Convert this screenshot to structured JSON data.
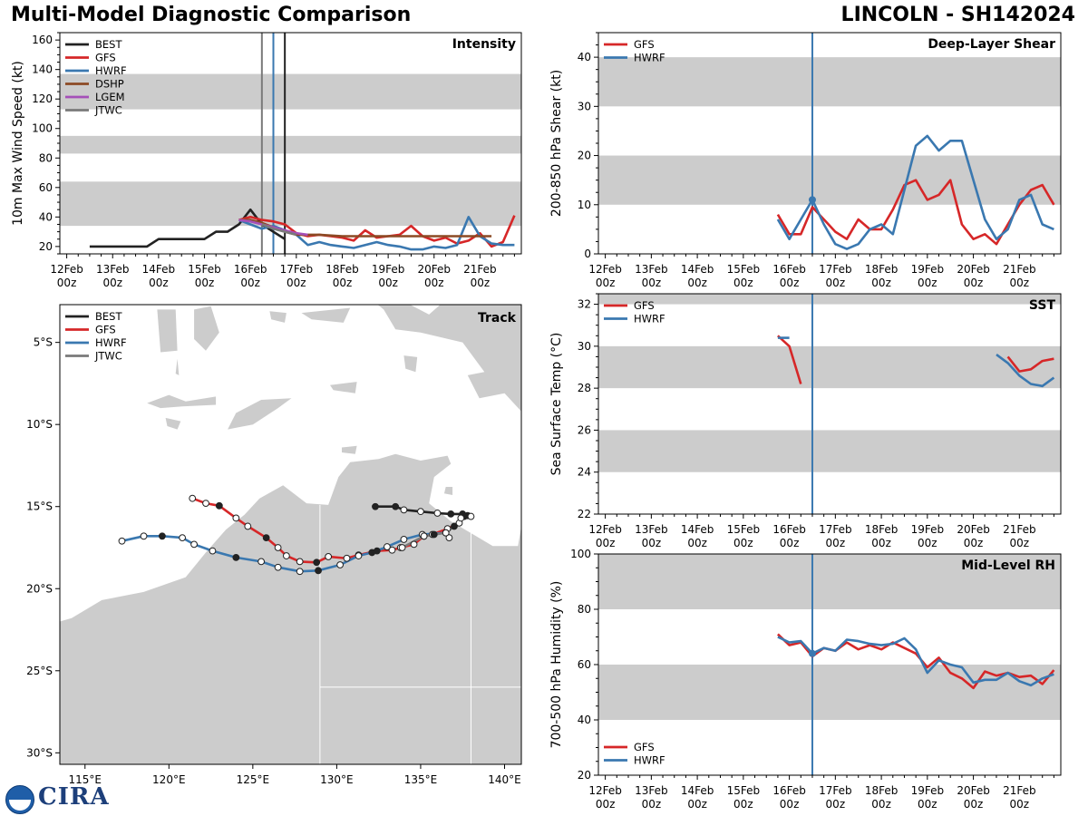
{
  "header": {
    "title": "Multi-Model Diagnostic Comparison",
    "storm": "LINCOLN - SH142024"
  },
  "colors": {
    "BEST": "#222222",
    "GFS": "#d62728",
    "HWRF": "#3a78b0",
    "DSHP": "#8c4a24",
    "LGEM": "#a550b8",
    "JTWC": "#7a7a7a",
    "band": "#cccccc",
    "land": "#cccccc",
    "frame": "#000000"
  },
  "time_axis": {
    "ticks": [
      0,
      1,
      2,
      3,
      4,
      5,
      6,
      7,
      8,
      9
    ],
    "day_labels": [
      "12Feb",
      "13Feb",
      "14Feb",
      "15Feb",
      "16Feb",
      "17Feb",
      "18Feb",
      "19Feb",
      "20Feb",
      "21Feb"
    ],
    "hour_label": "00z",
    "xlim": [
      -0.15,
      9.9
    ],
    "current_time": 4.5
  },
  "logo": {
    "org_icon": "noaa-logo-icon",
    "org_text": "CIRA"
  },
  "chart_data": [
    {
      "type": "line",
      "title": "Intensity",
      "ylabel": "10m Max Wind Speed (kt)",
      "ylim": [
        15,
        165
      ],
      "yticks": [
        20,
        40,
        60,
        80,
        100,
        120,
        140,
        160
      ],
      "bands": [
        [
          34,
          64
        ],
        [
          83,
          95
        ],
        [
          113,
          137
        ]
      ],
      "vlines": [
        {
          "x": 4.25,
          "color": "JTWC"
        },
        {
          "x": 4.5,
          "color": "HWRF"
        },
        {
          "x": 4.75,
          "color": "BEST"
        }
      ],
      "legend": [
        "BEST",
        "GFS",
        "HWRF",
        "DSHP",
        "LGEM",
        "JTWC"
      ],
      "legend_position": "top-left",
      "series": [
        {
          "name": "BEST",
          "x": [
            0.5,
            0.75,
            1,
            1.25,
            1.5,
            1.75,
            2,
            2.25,
            2.5,
            2.75,
            3,
            3.25,
            3.5,
            3.75,
            4,
            4.25,
            4.5,
            4.75
          ],
          "y": [
            20,
            20,
            20,
            20,
            20,
            20,
            25,
            25,
            25,
            25,
            25,
            30,
            30,
            35,
            45,
            35,
            30,
            25
          ]
        },
        {
          "name": "GFS",
          "x": [
            3.75,
            4,
            4.25,
            4.5,
            4.75,
            5,
            5.25,
            5.5,
            5.75,
            6,
            6.25,
            6.5,
            6.75,
            7,
            7.25,
            7.5,
            7.75,
            8,
            8.25,
            8.5,
            8.75,
            9,
            9.25,
            9.5,
            9.75
          ],
          "y": [
            38,
            40,
            38,
            37,
            35,
            29,
            27,
            28,
            27,
            26,
            24,
            31,
            26,
            27,
            28,
            34,
            27,
            24,
            26,
            22,
            24,
            29,
            20,
            23,
            41
          ]
        },
        {
          "name": "HWRF",
          "x": [
            3.75,
            4,
            4.25,
            4.5,
            4.75,
            5,
            5.25,
            5.5,
            5.75,
            6,
            6.25,
            6.5,
            6.75,
            7,
            7.25,
            7.5,
            7.75,
            8,
            8.25,
            8.5,
            8.75,
            9,
            9.25,
            9.5,
            9.75
          ],
          "y": [
            38,
            35,
            32,
            34,
            31,
            28,
            21,
            23,
            21,
            20,
            19,
            21,
            23,
            21,
            20,
            18,
            18,
            20,
            19,
            21,
            40,
            27,
            22,
            21,
            21
          ]
        },
        {
          "name": "DSHP",
          "x": [
            3.75,
            4,
            4.25,
            4.5,
            4.75,
            5,
            5.5,
            6,
            6.5,
            7,
            7.5,
            8,
            8.5,
            9,
            9.25
          ],
          "y": [
            38,
            38,
            36,
            33,
            30,
            28,
            28,
            27,
            27,
            27,
            27,
            27,
            27,
            27,
            27
          ]
        },
        {
          "name": "LGEM",
          "x": [
            3.75,
            4,
            4.25,
            4.5,
            4.75,
            5,
            5.25
          ],
          "y": [
            38,
            37,
            35,
            33,
            31,
            29,
            28
          ]
        },
        {
          "name": "JTWC",
          "x": [
            4.25,
            4.5,
            4.75,
            5
          ],
          "y": [
            35,
            32,
            30,
            28
          ]
        }
      ]
    },
    {
      "type": "line",
      "title": "Deep-Layer Shear",
      "ylabel": "200-850 hPa Shear (kt)",
      "ylim": [
        0,
        45
      ],
      "yticks": [
        0,
        10,
        20,
        30,
        40
      ],
      "bands": [
        [
          10,
          20
        ],
        [
          30,
          40
        ]
      ],
      "legend": [
        "GFS",
        "HWRF"
      ],
      "legend_position": "top-left",
      "marker": {
        "x": 4.5,
        "y": 11
      },
      "series": [
        {
          "name": "GFS",
          "x": [
            3.75,
            4,
            4.25,
            4.5,
            4.75,
            5,
            5.25,
            5.5,
            5.75,
            6,
            6.25,
            6.5,
            6.75,
            7,
            7.25,
            7.5,
            7.75,
            8,
            8.25,
            8.5,
            8.75,
            9,
            9.25,
            9.5,
            9.75
          ],
          "y": [
            8,
            4,
            4,
            9.5,
            7,
            4.5,
            3,
            7,
            5,
            5,
            9,
            14,
            15,
            11,
            12,
            15,
            6,
            3,
            4,
            2,
            6,
            10,
            13,
            14,
            10
          ]
        },
        {
          "name": "HWRF",
          "x": [
            3.75,
            4,
            4.25,
            4.5,
            4.75,
            5,
            5.25,
            5.5,
            5.75,
            6,
            6.25,
            6.5,
            6.75,
            7,
            7.25,
            7.5,
            7.75,
            8,
            8.25,
            8.5,
            8.75,
            9,
            9.25,
            9.5,
            9.75
          ],
          "y": [
            7,
            3,
            7,
            11,
            6,
            2,
            1,
            2,
            5,
            6,
            4,
            13,
            22,
            24,
            21,
            23,
            23,
            15,
            7,
            3,
            5,
            11,
            12,
            6,
            5
          ]
        }
      ]
    },
    {
      "type": "line",
      "title": "SST",
      "ylabel": "Sea Surface Temp (°C)",
      "ylim": [
        22,
        32.5
      ],
      "yticks": [
        22,
        24,
        26,
        28,
        30,
        32
      ],
      "bands": [
        [
          24,
          26
        ],
        [
          28,
          30
        ],
        [
          32,
          34
        ]
      ],
      "legend": [
        "GFS",
        "HWRF"
      ],
      "legend_position": "top-left",
      "series": [
        {
          "name": "GFS",
          "segments": [
            {
              "x": [
                3.75,
                4,
                4.25
              ],
              "y": [
                30.5,
                30.0,
                28.2
              ]
            },
            {
              "x": [
                8.75,
                9,
                9.25,
                9.5,
                9.75
              ],
              "y": [
                29.5,
                28.8,
                28.9,
                29.3,
                29.4
              ]
            }
          ]
        },
        {
          "name": "HWRF",
          "segments": [
            {
              "x": [
                3.75,
                4
              ],
              "y": [
                30.4,
                30.4
              ]
            },
            {
              "x": [
                8.5,
                8.75,
                9,
                9.25,
                9.5,
                9.75
              ],
              "y": [
                29.6,
                29.2,
                28.6,
                28.2,
                28.1,
                28.5
              ]
            }
          ]
        }
      ]
    },
    {
      "type": "line",
      "title": "Mid-Level RH",
      "ylabel": "700-500 hPa Humidity (%)",
      "ylim": [
        20,
        100
      ],
      "yticks": [
        20,
        40,
        60,
        80,
        100
      ],
      "bands": [
        [
          40,
          60
        ],
        [
          80,
          100
        ]
      ],
      "legend": [
        "GFS",
        "HWRF"
      ],
      "legend_position": "bottom-left",
      "marker": {
        "x": 4.5,
        "y": 64
      },
      "series": [
        {
          "name": "GFS",
          "x": [
            3.75,
            4,
            4.25,
            4.5,
            4.75,
            5,
            5.25,
            5.5,
            5.75,
            6,
            6.25,
            6.5,
            6.75,
            7,
            7.25,
            7.5,
            7.75,
            8,
            8.25,
            8.5,
            8.75,
            9,
            9.25,
            9.5,
            9.75
          ],
          "y": [
            71,
            67,
            68,
            63,
            66,
            65,
            68,
            65.5,
            67,
            65.5,
            68,
            66,
            64,
            59,
            62.5,
            57,
            55,
            51.5,
            57.5,
            56,
            57,
            55.5,
            56,
            53,
            58
          ]
        },
        {
          "name": "HWRF",
          "x": [
            3.75,
            4,
            4.25,
            4.5,
            4.75,
            5,
            5.25,
            5.5,
            5.75,
            6,
            6.25,
            6.5,
            6.75,
            7,
            7.25,
            7.5,
            7.75,
            8,
            8.25,
            8.5,
            8.75,
            9,
            9.25,
            9.5,
            9.75
          ],
          "y": [
            70,
            68,
            68.5,
            64,
            66,
            65,
            69,
            68.5,
            67.5,
            67,
            67.5,
            69.5,
            65.5,
            57,
            61.5,
            60,
            59,
            53.5,
            54.5,
            54.5,
            57,
            54,
            52.5,
            55,
            56.5
          ]
        }
      ]
    },
    {
      "type": "scatter",
      "title": "Track",
      "xlim": [
        113.5,
        141
      ],
      "ylim": [
        -30.7,
        -2.7
      ],
      "xticks": [
        115,
        120,
        125,
        130,
        135,
        140
      ],
      "xtick_labels": [
        "115°E",
        "120°E",
        "125°E",
        "130°E",
        "135°E",
        "140°E"
      ],
      "yticks": [
        -5,
        -10,
        -15,
        -20,
        -25,
        -30
      ],
      "ytick_labels": [
        "5°S",
        "10°S",
        "15°S",
        "20°S",
        "25°S",
        "30°S"
      ],
      "legend": [
        "BEST",
        "GFS",
        "HWRF",
        "JTWC"
      ],
      "legend_position": "top-left",
      "series": [
        {
          "name": "BEST",
          "lon": [
            132.3,
            133.5,
            134,
            135,
            136,
            136.8,
            137.5,
            137.8,
            138.0
          ],
          "lat": [
            -15.0,
            -15.0,
            -15.2,
            -15.3,
            -15.4,
            -15.45,
            -15.45,
            -15.55,
            -15.6
          ],
          "filled": [
            true,
            true,
            false,
            false,
            false,
            true,
            true,
            true,
            false
          ]
        },
        {
          "name": "GFS",
          "lon": [
            121.4,
            122.2,
            123.0,
            124.0,
            124.7,
            125.8,
            126.5,
            127.0,
            127.8,
            128.8,
            129.5,
            130.6,
            131.3,
            132.4,
            133.3,
            133.8,
            134.6,
            135.2,
            135.7,
            136.6,
            137.3,
            137.6
          ],
          "lat": [
            -14.5,
            -14.8,
            -14.95,
            -15.7,
            -16.2,
            -16.9,
            -17.5,
            -18.0,
            -18.35,
            -18.4,
            -18.05,
            -18.15,
            -17.95,
            -17.7,
            -17.65,
            -17.5,
            -17.3,
            -16.8,
            -16.7,
            -16.35,
            -16.0,
            -15.6
          ],
          "filled": [
            false,
            false,
            true,
            false,
            false,
            true,
            false,
            false,
            false,
            true,
            false,
            false,
            false,
            true,
            false,
            false,
            false,
            false,
            false,
            false,
            false,
            true
          ]
        },
        {
          "name": "HWRF",
          "lon": [
            117.2,
            118.5,
            119.6,
            120.8,
            121.5,
            122.6,
            124.0,
            125.5,
            126.5,
            127.8,
            128.9,
            130.2,
            131.3,
            132.1,
            133.0,
            134.0,
            135.1,
            136.5,
            136.7
          ],
          "lat": [
            -17.1,
            -16.8,
            -16.8,
            -16.9,
            -17.3,
            -17.7,
            -18.1,
            -18.35,
            -18.7,
            -18.95,
            -18.9,
            -18.55,
            -18.0,
            -17.8,
            -17.45,
            -17.0,
            -16.7,
            -16.6,
            -16.9
          ],
          "filled": [
            false,
            false,
            true,
            false,
            false,
            false,
            true,
            false,
            false,
            false,
            true,
            false,
            false,
            true,
            false,
            false,
            false,
            false,
            false
          ]
        },
        {
          "name": "JTWC",
          "lon": [
            133.9,
            135.2,
            135.8,
            136.5,
            137.0,
            137.4
          ],
          "lat": [
            -17.5,
            -16.8,
            -16.7,
            -16.6,
            -16.2,
            -15.7
          ],
          "filled": [
            false,
            false,
            true,
            false,
            true,
            false
          ]
        }
      ]
    }
  ]
}
